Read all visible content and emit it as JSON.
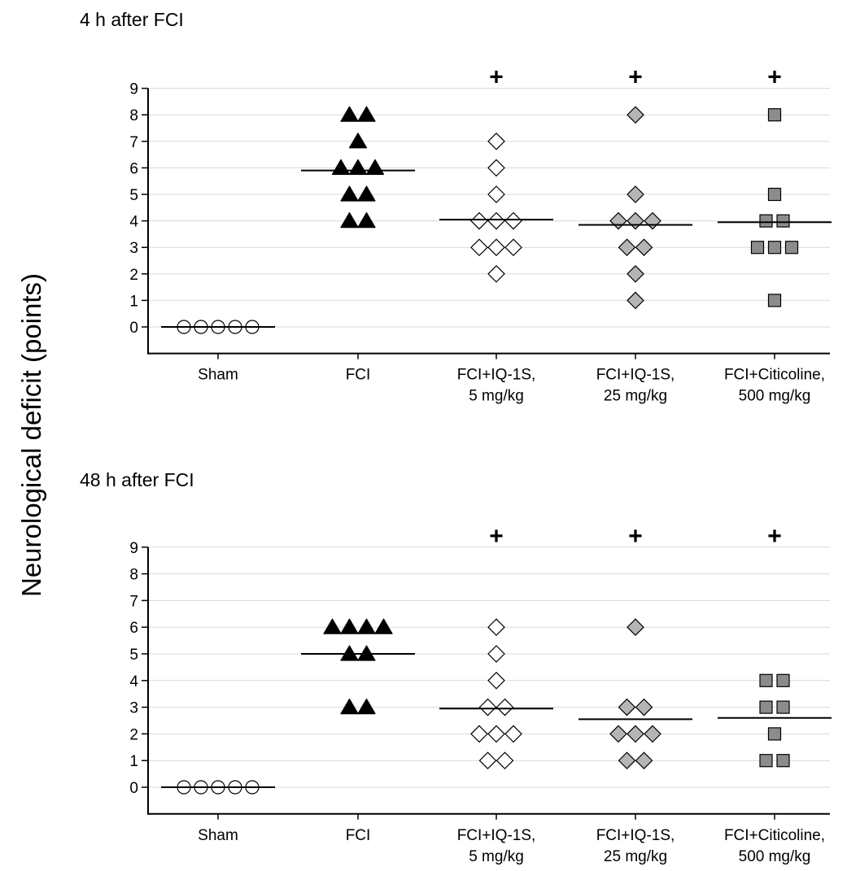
{
  "y_axis_label": "Neurological deficit (points)",
  "colors": {
    "fci": "#000000",
    "iq5": "#ffffff",
    "iq25": "#b5b5b5",
    "citicoline": "#8c8c8c",
    "grid": "#d9d9d9"
  },
  "chart_data": [
    {
      "type": "scatter",
      "title": "4 h after FCI",
      "ylabel": "Neurological deficit (points)",
      "ylim": [
        -1,
        9
      ],
      "yticks": [
        0,
        1,
        2,
        3,
        4,
        5,
        6,
        7,
        8,
        9
      ],
      "grid": true,
      "categories": [
        [
          "Sham"
        ],
        [
          "FCI"
        ],
        [
          "FCI+IQ-1S,",
          "5 mg/kg"
        ],
        [
          "FCI+IQ-1S,",
          "25 mg/kg"
        ],
        [
          "FCI+Citicoline,",
          "500 mg/kg"
        ]
      ],
      "groups": [
        {
          "marker": "circle",
          "fill": "#ffffff",
          "median": 0,
          "significance": "",
          "points": [
            0,
            0,
            0,
            0,
            0
          ]
        },
        {
          "marker": "triangle",
          "fill": "#000000",
          "median": 5.9,
          "significance": "",
          "points": [
            8,
            8,
            7,
            6,
            6,
            6,
            5,
            5,
            4,
            4
          ]
        },
        {
          "marker": "diamond",
          "fill": "#ffffff",
          "median": 4.05,
          "significance": "+",
          "points": [
            7,
            6,
            5,
            4,
            4,
            4,
            3,
            3,
            3,
            2
          ]
        },
        {
          "marker": "diamond",
          "fill": "#b5b5b5",
          "median": 3.85,
          "significance": "+",
          "points": [
            8,
            5,
            4,
            4,
            4,
            3,
            3,
            2,
            1
          ]
        },
        {
          "marker": "square",
          "fill": "#8c8c8c",
          "median": 3.95,
          "significance": "+",
          "points": [
            8,
            5,
            4,
            4,
            3,
            3,
            3,
            1
          ]
        }
      ]
    },
    {
      "type": "scatter",
      "title": "48 h after FCI",
      "ylabel": "Neurological deficit (points)",
      "ylim": [
        -1,
        9
      ],
      "yticks": [
        0,
        1,
        2,
        3,
        4,
        5,
        6,
        7,
        8,
        9
      ],
      "grid": true,
      "categories": [
        [
          "Sham"
        ],
        [
          "FCI"
        ],
        [
          "FCI+IQ-1S,",
          "5 mg/kg"
        ],
        [
          "FCI+IQ-1S,",
          "25 mg/kg"
        ],
        [
          "FCI+Citicoline,",
          "500 mg/kg"
        ]
      ],
      "groups": [
        {
          "marker": "circle",
          "fill": "#ffffff",
          "median": 0,
          "significance": "",
          "points": [
            0,
            0,
            0,
            0,
            0
          ]
        },
        {
          "marker": "triangle",
          "fill": "#000000",
          "median": 5,
          "significance": "",
          "points": [
            6,
            6,
            6,
            6,
            5,
            5,
            3,
            3
          ]
        },
        {
          "marker": "diamond",
          "fill": "#ffffff",
          "median": 2.95,
          "significance": "+",
          "points": [
            6,
            5,
            4,
            3,
            3,
            2,
            2,
            2,
            1,
            1
          ]
        },
        {
          "marker": "diamond",
          "fill": "#b5b5b5",
          "median": 2.55,
          "significance": "+",
          "points": [
            6,
            3,
            3,
            2,
            2,
            2,
            1,
            1
          ]
        },
        {
          "marker": "square",
          "fill": "#8c8c8c",
          "median": 2.6,
          "significance": "+",
          "points": [
            4,
            4,
            3,
            3,
            2,
            1,
            1
          ]
        }
      ]
    }
  ]
}
